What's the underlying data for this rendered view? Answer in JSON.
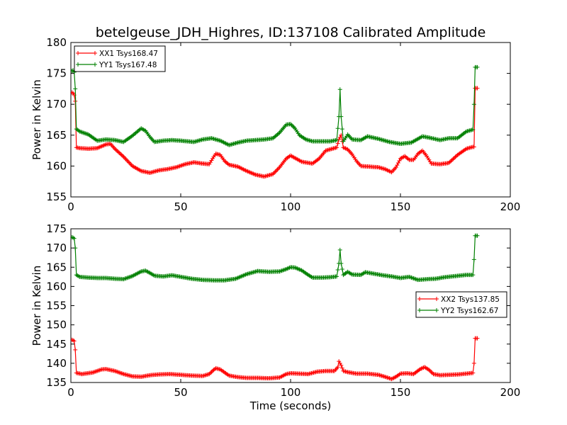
{
  "figure": {
    "title": "betelgeuse_JDH_Highres, ID:137108 Calibrated Amplitude",
    "xlabel": "Time (seconds)"
  },
  "chart_data": [
    {
      "type": "line",
      "ylabel": "Power in Kelvin",
      "xlim": [
        0,
        200
      ],
      "ylim": [
        155,
        180
      ],
      "xticks": [
        "0",
        "50",
        "100",
        "150",
        "200"
      ],
      "yticks": [
        "155",
        "160",
        "165",
        "170",
        "175",
        "180"
      ],
      "legend_position": "top-left",
      "series": [
        {
          "name": "XX1 Tsys168.47",
          "color": "#ff0000",
          "points": [
            [
              0.5,
              171.9
            ],
            [
              1,
              171.8
            ],
            [
              1.5,
              171.5
            ],
            [
              2,
              170.5
            ],
            [
              2.5,
              163
            ],
            [
              4,
              162.9
            ],
            [
              8,
              162.8
            ],
            [
              12,
              162.9
            ],
            [
              16,
              163.5
            ],
            [
              18,
              163.6
            ],
            [
              20,
              162.8
            ],
            [
              24,
              161.5
            ],
            [
              28,
              160
            ],
            [
              32,
              159.2
            ],
            [
              36,
              158.9
            ],
            [
              40,
              159.3
            ],
            [
              44,
              159.5
            ],
            [
              48,
              159.8
            ],
            [
              52,
              160.3
            ],
            [
              56,
              160.6
            ],
            [
              60,
              160.4
            ],
            [
              63,
              160.3
            ],
            [
              65,
              161.5
            ],
            [
              66,
              162
            ],
            [
              68,
              161.8
            ],
            [
              70,
              160.8
            ],
            [
              72,
              160.2
            ],
            [
              76,
              159.9
            ],
            [
              80,
              159.2
            ],
            [
              84,
              158.6
            ],
            [
              88,
              158.3
            ],
            [
              92,
              158.7
            ],
            [
              95,
              159.8
            ],
            [
              98,
              161.2
            ],
            [
              100,
              161.7
            ],
            [
              102,
              161.3
            ],
            [
              105,
              160.7
            ],
            [
              110,
              160.4
            ],
            [
              113,
              161.2
            ],
            [
              116,
              162.5
            ],
            [
              119,
              162.8
            ],
            [
              121,
              163
            ],
            [
              122,
              164.3
            ],
            [
              123,
              165
            ],
            [
              124,
              163
            ],
            [
              126,
              162.7
            ],
            [
              128,
              161.9
            ],
            [
              130,
              160.8
            ],
            [
              132,
              160
            ],
            [
              136,
              159.9
            ],
            [
              140,
              159.8
            ],
            [
              143,
              159.5
            ],
            [
              146,
              159
            ],
            [
              148,
              159.8
            ],
            [
              150,
              161.2
            ],
            [
              152,
              161.6
            ],
            [
              154,
              161
            ],
            [
              156,
              161
            ],
            [
              158,
              162
            ],
            [
              160,
              162.5
            ],
            [
              162,
              161.6
            ],
            [
              164,
              160.4
            ],
            [
              168,
              160.3
            ],
            [
              172,
              160.5
            ],
            [
              176,
              161.8
            ],
            [
              180,
              162.8
            ],
            [
              183,
              163.1
            ],
            [
              183.5,
              163.1
            ],
            [
              184,
              172.6
            ],
            [
              185,
              172.6
            ]
          ]
        },
        {
          "name": "YY1 Tsys167.48",
          "color": "#008000",
          "points": [
            [
              0.5,
              175.4
            ],
            [
              1,
              175.5
            ],
            [
              1.5,
              175.2
            ],
            [
              2,
              172.5
            ],
            [
              2.5,
              166
            ],
            [
              4,
              165.6
            ],
            [
              8,
              165.1
            ],
            [
              12,
              164.1
            ],
            [
              16,
              164.3
            ],
            [
              20,
              164.2
            ],
            [
              24,
              163.9
            ],
            [
              28,
              164.9
            ],
            [
              32,
              166.1
            ],
            [
              34,
              165.7
            ],
            [
              36,
              164.7
            ],
            [
              38,
              163.9
            ],
            [
              42,
              164.1
            ],
            [
              46,
              164.2
            ],
            [
              50,
              164.1
            ],
            [
              56,
              163.9
            ],
            [
              60,
              164.3
            ],
            [
              64,
              164.5
            ],
            [
              68,
              164.1
            ],
            [
              72,
              163.4
            ],
            [
              76,
              163.8
            ],
            [
              80,
              164.1
            ],
            [
              84,
              164.2
            ],
            [
              88,
              164.3
            ],
            [
              92,
              164.5
            ],
            [
              95,
              165.4
            ],
            [
              98,
              166.7
            ],
            [
              100,
              166.8
            ],
            [
              102,
              166.1
            ],
            [
              104,
              165
            ],
            [
              107,
              164.3
            ],
            [
              110,
              164
            ],
            [
              114,
              164
            ],
            [
              118,
              164
            ],
            [
              121,
              164.2
            ],
            [
              122,
              168
            ],
            [
              122.5,
              172.4
            ],
            [
              123,
              168
            ],
            [
              124,
              164
            ],
            [
              126,
              165.1
            ],
            [
              128,
              164.3
            ],
            [
              132,
              164.2
            ],
            [
              135,
              164.8
            ],
            [
              140,
              164.4
            ],
            [
              145,
              163.9
            ],
            [
              150,
              163.6
            ],
            [
              155,
              163.8
            ],
            [
              158,
              164.4
            ],
            [
              160,
              164.8
            ],
            [
              163,
              164.6
            ],
            [
              168,
              164.2
            ],
            [
              172,
              164.5
            ],
            [
              176,
              164.5
            ],
            [
              180,
              165.6
            ],
            [
              183,
              165.9
            ],
            [
              183.5,
              170
            ],
            [
              184,
              176
            ],
            [
              185,
              176
            ]
          ]
        }
      ]
    },
    {
      "type": "line",
      "ylabel": "Power in Kelvin",
      "xlim": [
        0,
        200
      ],
      "ylim": [
        135,
        175
      ],
      "xticks": [
        "0",
        "50",
        "100",
        "150",
        "200"
      ],
      "yticks": [
        "135",
        "140",
        "145",
        "150",
        "155",
        "160",
        "165",
        "170",
        "175"
      ],
      "legend_position": "center-right",
      "series": [
        {
          "name": "XX2 Tsys137.85",
          "color": "#ff0000",
          "points": [
            [
              0.5,
              146.1
            ],
            [
              1,
              146
            ],
            [
              1.5,
              145.8
            ],
            [
              2,
              143.5
            ],
            [
              2.5,
              137.5
            ],
            [
              5,
              137.2
            ],
            [
              10,
              137.6
            ],
            [
              14,
              138.4
            ],
            [
              16,
              138.5
            ],
            [
              20,
              138
            ],
            [
              24,
              137.2
            ],
            [
              28,
              136.6
            ],
            [
              32,
              136.5
            ],
            [
              36,
              136.9
            ],
            [
              40,
              137.1
            ],
            [
              45,
              137.2
            ],
            [
              50,
              137
            ],
            [
              55,
              136.8
            ],
            [
              60,
              136.7
            ],
            [
              63,
              137.2
            ],
            [
              65,
              138.3
            ],
            [
              66,
              138.7
            ],
            [
              68,
              138.4
            ],
            [
              70,
              137.6
            ],
            [
              72,
              136.8
            ],
            [
              76,
              136.4
            ],
            [
              80,
              136.2
            ],
            [
              85,
              136.2
            ],
            [
              90,
              136.1
            ],
            [
              95,
              136.3
            ],
            [
              98,
              137.2
            ],
            [
              100,
              137.4
            ],
            [
              104,
              137.3
            ],
            [
              108,
              137.2
            ],
            [
              112,
              137.8
            ],
            [
              116,
              138
            ],
            [
              120,
              138
            ],
            [
              121.5,
              139
            ],
            [
              122,
              140.5
            ],
            [
              123,
              139.5
            ],
            [
              124,
              138
            ],
            [
              126,
              137.7
            ],
            [
              130,
              137.3
            ],
            [
              135,
              137.3
            ],
            [
              140,
              137
            ],
            [
              144,
              136.3
            ],
            [
              146,
              135.9
            ],
            [
              148,
              136.5
            ],
            [
              150,
              137.3
            ],
            [
              153,
              137.4
            ],
            [
              156,
              137.2
            ],
            [
              159,
              138.5
            ],
            [
              161,
              139
            ],
            [
              163,
              138.3
            ],
            [
              165,
              137.2
            ],
            [
              168,
              136.9
            ],
            [
              172,
              137
            ],
            [
              176,
              137.1
            ],
            [
              180,
              137.3
            ],
            [
              183,
              137.5
            ],
            [
              183.5,
              140
            ],
            [
              184,
              146.5
            ],
            [
              185,
              146.5
            ]
          ]
        },
        {
          "name": "YY2 Tsys162.67",
          "color": "#008000",
          "points": [
            [
              0.5,
              172.8
            ],
            [
              1,
              172.7
            ],
            [
              1.5,
              172.5
            ],
            [
              2,
              170
            ],
            [
              2.5,
              163
            ],
            [
              4,
              162.5
            ],
            [
              8,
              162.3
            ],
            [
              12,
              162.2
            ],
            [
              16,
              162.2
            ],
            [
              20,
              162
            ],
            [
              24,
              161.9
            ],
            [
              28,
              162.7
            ],
            [
              32,
              163.9
            ],
            [
              34,
              164.1
            ],
            [
              36,
              163.5
            ],
            [
              38,
              162.8
            ],
            [
              42,
              162.6
            ],
            [
              46,
              162.9
            ],
            [
              50,
              162.5
            ],
            [
              55,
              162
            ],
            [
              60,
              161.7
            ],
            [
              65,
              161.6
            ],
            [
              70,
              161.6
            ],
            [
              75,
              162
            ],
            [
              80,
              163.2
            ],
            [
              85,
              164
            ],
            [
              90,
              163.8
            ],
            [
              95,
              163.9
            ],
            [
              98,
              164.5
            ],
            [
              100,
              165
            ],
            [
              102,
              164.9
            ],
            [
              105,
              164.2
            ],
            [
              108,
              163
            ],
            [
              110,
              162.3
            ],
            [
              114,
              162.3
            ],
            [
              118,
              162.4
            ],
            [
              121,
              162.6
            ],
            [
              122,
              166
            ],
            [
              122.5,
              169.5
            ],
            [
              123,
              166
            ],
            [
              124,
              163
            ],
            [
              126,
              163.8
            ],
            [
              128,
              163.1
            ],
            [
              132,
              163
            ],
            [
              134,
              163.7
            ],
            [
              138,
              163.3
            ],
            [
              142,
              162.9
            ],
            [
              146,
              162.6
            ],
            [
              150,
              162.2
            ],
            [
              154,
              162.5
            ],
            [
              158,
              161.7
            ],
            [
              162,
              161.9
            ],
            [
              166,
              162
            ],
            [
              170,
              162.4
            ],
            [
              175,
              162.7
            ],
            [
              180,
              163
            ],
            [
              183,
              163
            ],
            [
              183.5,
              167
            ],
            [
              184,
              173.2
            ],
            [
              185,
              173.2
            ]
          ]
        }
      ]
    }
  ]
}
